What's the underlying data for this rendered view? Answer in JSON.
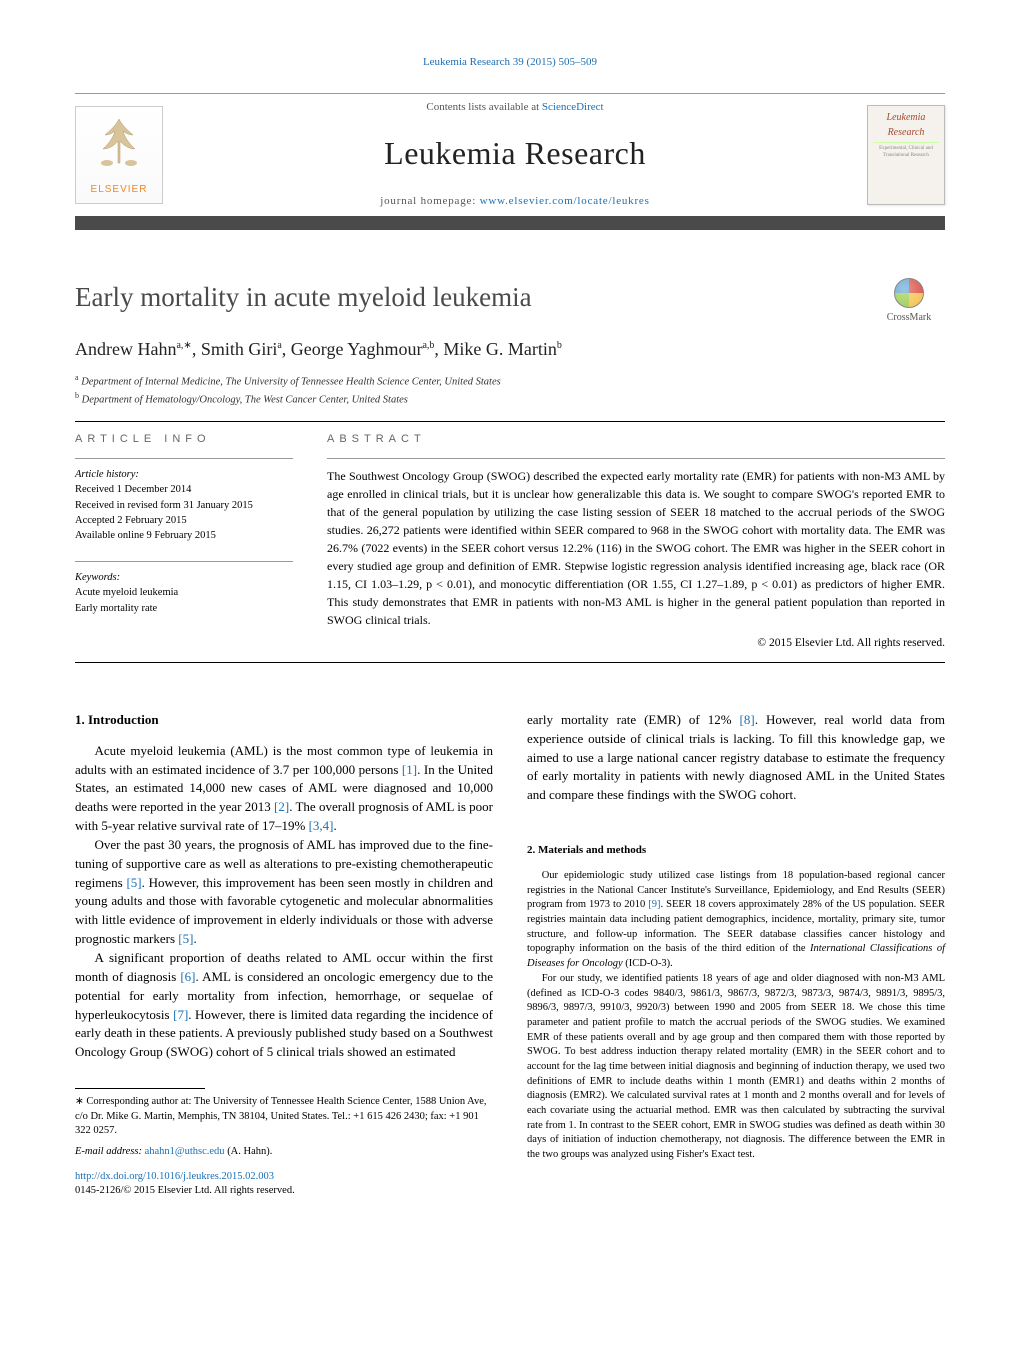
{
  "running_head": "Leukemia Research 39 (2015) 505–509",
  "masthead": {
    "contents_prefix": "Contents lists available at ",
    "contents_link": "ScienceDirect",
    "journal": "Leukemia Research",
    "homepage_prefix": "journal homepage: ",
    "homepage_url": "www.elsevier.com/locate/leukres",
    "publisher_word": "ELSEVIER",
    "cover_title": "Leukemia Research",
    "cover_sub": "—"
  },
  "title": "Early mortality in acute myeloid leukemia",
  "crossmark_label": "CrossMark",
  "authors_html": "Andrew Hahn",
  "author_list": [
    {
      "name": "Andrew Hahn",
      "sup": "a,∗"
    },
    {
      "name": "Smith Giri",
      "sup": "a"
    },
    {
      "name": "George Yaghmour",
      "sup": "a,b"
    },
    {
      "name": "Mike G. Martin",
      "sup": "b"
    }
  ],
  "affiliations": [
    {
      "sup": "a",
      "text": "Department of Internal Medicine, The University of Tennessee Health Science Center, United States"
    },
    {
      "sup": "b",
      "text": "Department of Hematology/Oncology, The West Cancer Center, United States"
    }
  ],
  "article_info": {
    "heading": "article info",
    "history_label": "Article history:",
    "history": [
      "Received 1 December 2014",
      "Received in revised form 31 January 2015",
      "Accepted 2 February 2015",
      "Available online 9 February 2015"
    ],
    "keywords_label": "Keywords:",
    "keywords": [
      "Acute myeloid leukemia",
      "Early mortality rate"
    ]
  },
  "abstract": {
    "heading": "abstract",
    "text": "The Southwest Oncology Group (SWOG) described the expected early mortality rate (EMR) for patients with non-M3 AML by age enrolled in clinical trials, but it is unclear how generalizable this data is. We sought to compare SWOG's reported EMR to that of the general population by utilizing the case listing session of SEER 18 matched to the accrual periods of the SWOG studies. 26,272 patients were identified within SEER compared to 968 in the SWOG cohort with mortality data. The EMR was 26.7% (7022 events) in the SEER cohort versus 12.2% (116) in the SWOG cohort. The EMR was higher in the SEER cohort in every studied age group and definition of EMR. Stepwise logistic regression analysis identified increasing age, black race (OR 1.15, CI 1.03–1.29, p < 0.01), and monocytic differentiation (OR 1.55, CI 1.27–1.89, p < 0.01) as predictors of higher EMR. This study demonstrates that EMR in patients with non-M3 AML is higher in the general patient population than reported in SWOG clinical trials.",
    "copyright": "© 2015 Elsevier Ltd. All rights reserved."
  },
  "sections": {
    "s1": {
      "heading": "1.  Introduction",
      "p1": "Acute myeloid leukemia (AML) is the most common type of leukemia in adults with an estimated incidence of 3.7 per 100,000 persons [1]. In the United States, an estimated 14,000 new cases of AML were diagnosed and 10,000 deaths were reported in the year 2013 [2]. The overall prognosis of AML is poor with 5-year relative survival rate of 17–19% [3,4].",
      "p2": "Over the past 30 years, the prognosis of AML has improved due to the fine-tuning of supportive care as well as alterations to pre-existing chemotherapeutic regimens [5]. However, this improvement has been seen mostly in children and young adults and those with favorable cytogenetic and molecular abnormalities with little evidence of improvement in elderly individuals or those with adverse prognostic markers [5].",
      "p3": "A significant proportion of deaths related to AML occur within the first month of diagnosis [6]. AML is considered an oncologic emergency due to the potential for early mortality from infection, hemorrhage, or sequelae of hyperleukocytosis [7]. However, there is limited data regarding the incidence of early death in these patients. A previously published study based on a Southwest Oncology Group (SWOG) cohort of 5 clinical trials showed an estimated",
      "p3_cont": "early mortality rate (EMR) of 12% [8]. However, real world data from experience outside of clinical trials is lacking. To fill this knowledge gap, we aimed to use a large national cancer registry database to estimate the frequency of early mortality in patients with newly diagnosed AML in the United States and compare these findings with the SWOG cohort."
    },
    "s2": {
      "heading": "2.  Materials and methods",
      "p1": "Our epidemiologic study utilized case listings from 18 population-based regional cancer registries in the National Cancer Institute's Surveillance, Epidemiology, and End Results (SEER) program from 1973 to 2010 [9]. SEER 18 covers approximately 28% of the US population. SEER registries maintain data including patient demographics, incidence, mortality, primary site, tumor structure, and follow-up information. The SEER database classifies cancer histology and topography information on the basis of the third edition of the International Classifications of Diseases for Oncology (ICD-O-3).",
      "p2": "For our study, we identified patients 18 years of age and older diagnosed with non-M3 AML (defined as ICD-O-3 codes 9840/3, 9861/3, 9867/3, 9872/3, 9873/3, 9874/3, 9891/3, 9895/3, 9896/3, 9897/3, 9910/3, 9920/3) between 1990 and 2005 from SEER 18. We chose this time parameter and patient profile to match the accrual periods of the SWOG studies. We examined EMR of these patients overall and by age group and then compared them with those reported by SWOG. To best address induction therapy related mortality (EMR) in the SEER cohort and to account for the lag time between initial diagnosis and beginning of induction therapy, we used two definitions of EMR to include deaths within 1 month (EMR1) and deaths within 2 months of diagnosis (EMR2). We calculated survival rates at 1 month and 2 months overall and for levels of each covariate using the actuarial method. EMR was then calculated by subtracting the survival rate from 1. In contrast to the SEER cohort, EMR in SWOG studies was defined as death within 30 days of initiation of induction chemotherapy, not diagnosis. The difference between the EMR in the two groups was analyzed using Fisher's Exact test."
    }
  },
  "footnote": {
    "corr": "∗ Corresponding author at: The University of Tennessee Health Science Center, 1588 Union Ave, c/o Dr. Mike G. Martin, Memphis, TN 38104, United States. Tel.: +1 615 426 2430; fax: +1 901 322 0257.",
    "email_label": "E-mail address: ",
    "email": "ahahn1@uthsc.edu",
    "email_who": " (A. Hahn)."
  },
  "doi": {
    "url": "http://dx.doi.org/10.1016/j.leukres.2015.02.003",
    "issn_line": "0145-2126/© 2015 Elsevier Ltd. All rights reserved."
  },
  "colors": {
    "link": "#1a6fb5",
    "bar": "#4a4a4a",
    "elsevier_orange": "#e98b2a"
  }
}
